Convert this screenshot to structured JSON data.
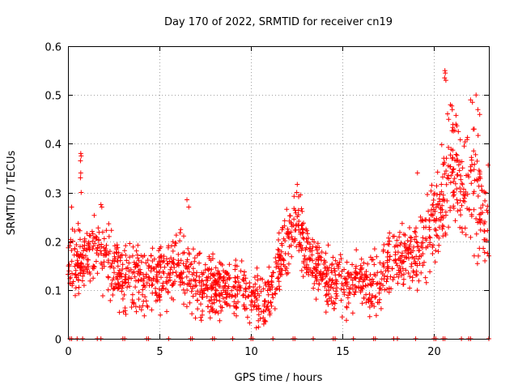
{
  "chart_data": {
    "type": "scatter",
    "title": "Day 170 of 2022, SRMTID for receiver cn19",
    "xlabel": "GPS time / hours",
    "ylabel": "SRMTID / TECUs",
    "xlim": [
      0,
      23
    ],
    "ylim": [
      0,
      0.6
    ],
    "x_ticks": [
      0,
      5,
      10,
      15,
      20
    ],
    "x_tick_labels": [
      "0",
      "5",
      "10",
      "15",
      "20"
    ],
    "y_ticks": [
      0,
      0.1,
      0.2,
      0.3,
      0.4,
      0.5,
      0.6
    ],
    "y_tick_labels": [
      "0",
      "0.1",
      "0.2",
      "0.3",
      "0.4",
      "0.5",
      "0.6"
    ],
    "grid": true,
    "marker": "+",
    "color": "#ff0000",
    "trend": [
      [
        0.0,
        0.16
      ],
      [
        0.5,
        0.15
      ],
      [
        1.0,
        0.17
      ],
      [
        1.5,
        0.19
      ],
      [
        2.0,
        0.16
      ],
      [
        2.5,
        0.15
      ],
      [
        3.0,
        0.13
      ],
      [
        3.5,
        0.12
      ],
      [
        4.0,
        0.11
      ],
      [
        4.5,
        0.12
      ],
      [
        5.0,
        0.13
      ],
      [
        5.5,
        0.14
      ],
      [
        6.0,
        0.15
      ],
      [
        6.5,
        0.14
      ],
      [
        7.0,
        0.11
      ],
      [
        7.5,
        0.1
      ],
      [
        8.0,
        0.1
      ],
      [
        8.5,
        0.11
      ],
      [
        9.0,
        0.1
      ],
      [
        9.5,
        0.1
      ],
      [
        10.0,
        0.09
      ],
      [
        10.5,
        0.07
      ],
      [
        11.0,
        0.08
      ],
      [
        11.5,
        0.14
      ],
      [
        12.0,
        0.2
      ],
      [
        12.5,
        0.24
      ],
      [
        13.0,
        0.19
      ],
      [
        13.5,
        0.15
      ],
      [
        14.0,
        0.13
      ],
      [
        14.5,
        0.12
      ],
      [
        15.0,
        0.11
      ],
      [
        15.5,
        0.11
      ],
      [
        16.0,
        0.12
      ],
      [
        16.5,
        0.11
      ],
      [
        17.0,
        0.11
      ],
      [
        17.5,
        0.16
      ],
      [
        18.0,
        0.17
      ],
      [
        18.5,
        0.18
      ],
      [
        19.0,
        0.17
      ],
      [
        19.5,
        0.21
      ],
      [
        20.0,
        0.25
      ],
      [
        20.5,
        0.29
      ],
      [
        21.0,
        0.35
      ],
      [
        21.5,
        0.31
      ],
      [
        22.0,
        0.3
      ],
      [
        22.5,
        0.27
      ],
      [
        23.0,
        0.25
      ]
    ],
    "spread": [
      [
        0.0,
        0.05
      ],
      [
        2.0,
        0.05
      ],
      [
        4.0,
        0.05
      ],
      [
        6.5,
        0.05
      ],
      [
        8.0,
        0.04
      ],
      [
        10.0,
        0.04
      ],
      [
        11.0,
        0.04
      ],
      [
        12.5,
        0.05
      ],
      [
        14.0,
        0.04
      ],
      [
        16.0,
        0.04
      ],
      [
        17.5,
        0.05
      ],
      [
        19.0,
        0.05
      ],
      [
        20.0,
        0.06
      ],
      [
        21.0,
        0.09
      ],
      [
        23.0,
        0.08
      ]
    ],
    "outliers": [
      {
        "x": 0.2,
        "y": 0.27
      },
      {
        "x": 0.7,
        "y": 0.38
      },
      {
        "x": 0.72,
        "y": 0.375
      },
      {
        "x": 0.68,
        "y": 0.365
      },
      {
        "x": 0.7,
        "y": 0.34
      },
      {
        "x": 0.68,
        "y": 0.33
      },
      {
        "x": 0.72,
        "y": 0.3
      },
      {
        "x": 1.8,
        "y": 0.275
      },
      {
        "x": 1.85,
        "y": 0.27
      },
      {
        "x": 6.5,
        "y": 0.285
      },
      {
        "x": 6.6,
        "y": 0.27
      },
      {
        "x": 12.5,
        "y": 0.3
      },
      {
        "x": 12.7,
        "y": 0.295
      },
      {
        "x": 20.6,
        "y": 0.55
      },
      {
        "x": 20.62,
        "y": 0.545
      },
      {
        "x": 20.58,
        "y": 0.535
      },
      {
        "x": 20.65,
        "y": 0.53
      },
      {
        "x": 22.3,
        "y": 0.5
      },
      {
        "x": 22.0,
        "y": 0.49
      },
      {
        "x": 22.1,
        "y": 0.485
      },
      {
        "x": 20.9,
        "y": 0.48
      },
      {
        "x": 21.0,
        "y": 0.47
      },
      {
        "x": 22.4,
        "y": 0.47
      },
      {
        "x": 22.5,
        "y": 0.46
      },
      {
        "x": 20.8,
        "y": 0.45
      },
      {
        "x": 21.2,
        "y": 0.44
      },
      {
        "x": 22.2,
        "y": 0.43
      },
      {
        "x": 19.1,
        "y": 0.34
      },
      {
        "x": 10.7,
        "y": 0.03
      },
      {
        "x": 10.8,
        "y": 0.035
      },
      {
        "x": 23.0,
        "y": 0.17
      },
      {
        "x": 23.05,
        "y": 0.165
      },
      {
        "x": 22.2,
        "y": 0.17
      }
    ],
    "baseline": {
      "y": 0,
      "x": [
        0.1,
        0.2,
        0.5,
        0.8,
        1.6,
        1.8,
        3.0,
        3.1,
        4.3,
        4.4,
        5.5,
        6.7,
        6.8,
        7.9,
        8.0,
        9.0,
        10.0,
        10.1,
        11.2,
        12.3,
        12.4,
        13.4,
        14.5,
        14.6,
        15.6,
        16.7,
        16.8,
        17.8,
        18.0,
        19.0,
        20.0,
        20.1,
        20.5,
        20.6,
        21.5,
        21.9,
        22.0,
        23.0
      ]
    },
    "n_points": 1700,
    "seed": 170
  }
}
